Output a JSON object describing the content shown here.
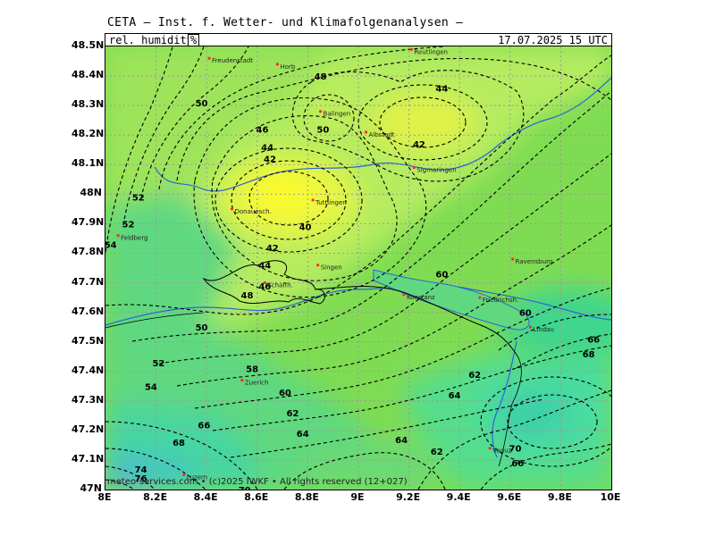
{
  "header": {
    "title": "CETA — Inst. f. Wetter- und Klimafolgenanalysen —",
    "parameter": "rel. humidity",
    "unit": "%",
    "valid_time": "17.07.2025 15 UTC"
  },
  "footer": "meteo-services.com • (c)2025 IWKF • All rights reserved (12+027)",
  "axes": {
    "x_ticks": [
      "8E",
      "8.2E",
      "8.4E",
      "8.6E",
      "8.8E",
      "9E",
      "9.2E",
      "9.4E",
      "9.6E",
      "9.8E",
      "10E"
    ],
    "y_ticks": [
      "48.5N",
      "48.4N",
      "48.3N",
      "48.2N",
      "48.1N",
      "48N",
      "47.9N",
      "47.8N",
      "47.7N",
      "47.6N",
      "47.5N",
      "47.4N",
      "47.3N",
      "47.2N",
      "47.1N",
      "47N"
    ]
  },
  "colors": {
    "grid": "#9a9a9a",
    "contour": "#000000",
    "lake": "#1f5fd0",
    "city": "#ff2a2a"
  },
  "cities": [
    {
      "name": "Freudenstadt",
      "lon": 8.41,
      "lat": 48.46
    },
    {
      "name": "Horb",
      "lon": 8.68,
      "lat": 48.44
    },
    {
      "name": "Reutlingen",
      "lon": 9.21,
      "lat": 48.49
    },
    {
      "name": "Balingen",
      "lon": 8.85,
      "lat": 48.28
    },
    {
      "name": "Albstadt",
      "lon": 9.03,
      "lat": 48.21
    },
    {
      "name": "Sigmaringen",
      "lon": 9.22,
      "lat": 48.09
    },
    {
      "name": "Tuttlingen",
      "lon": 8.82,
      "lat": 47.98
    },
    {
      "name": "Donauesch.",
      "lon": 8.5,
      "lat": 47.95
    },
    {
      "name": "Feldberg",
      "lon": 8.05,
      "lat": 47.86
    },
    {
      "name": "Singen",
      "lon": 8.84,
      "lat": 47.76
    },
    {
      "name": "Schaffh.",
      "lon": 8.63,
      "lat": 47.7
    },
    {
      "name": "Konstanz",
      "lon": 9.18,
      "lat": 47.66
    },
    {
      "name": "Ravensburg",
      "lon": 9.61,
      "lat": 47.78
    },
    {
      "name": "Friedrichsh.",
      "lon": 9.48,
      "lat": 47.65
    },
    {
      "name": "Lindau",
      "lon": 9.68,
      "lat": 47.55
    },
    {
      "name": "Zuerich",
      "lon": 8.54,
      "lat": 47.37
    },
    {
      "name": "Luzern",
      "lon": 8.31,
      "lat": 47.05
    },
    {
      "name": "Vaduz",
      "lon": 9.52,
      "lat": 47.14
    }
  ],
  "contour_labels": [
    {
      "t": "48",
      "lon": 8.85,
      "lat": 48.4
    },
    {
      "t": "44",
      "lon": 9.33,
      "lat": 48.36
    },
    {
      "t": "50",
      "lon": 8.38,
      "lat": 48.31
    },
    {
      "t": "50",
      "lon": 8.86,
      "lat": 48.22
    },
    {
      "t": "46",
      "lon": 8.62,
      "lat": 48.22
    },
    {
      "t": "44",
      "lon": 8.64,
      "lat": 48.16
    },
    {
      "t": "42",
      "lon": 9.24,
      "lat": 48.17
    },
    {
      "t": "42",
      "lon": 8.65,
      "lat": 48.12
    },
    {
      "t": "52",
      "lon": 8.13,
      "lat": 47.99
    },
    {
      "t": "52",
      "lon": 8.09,
      "lat": 47.9
    },
    {
      "t": "40",
      "lon": 8.79,
      "lat": 47.89
    },
    {
      "t": "54",
      "lon": 8.02,
      "lat": 47.83
    },
    {
      "t": "42",
      "lon": 8.66,
      "lat": 47.82
    },
    {
      "t": "44",
      "lon": 8.63,
      "lat": 47.76
    },
    {
      "t": "46",
      "lon": 8.63,
      "lat": 47.69
    },
    {
      "t": "48",
      "lon": 8.56,
      "lat": 47.66
    },
    {
      "t": "50",
      "lon": 8.38,
      "lat": 47.55
    },
    {
      "t": "60",
      "lon": 9.33,
      "lat": 47.73
    },
    {
      "t": "60",
      "lon": 9.66,
      "lat": 47.6
    },
    {
      "t": "52",
      "lon": 8.21,
      "lat": 47.43
    },
    {
      "t": "58",
      "lon": 8.58,
      "lat": 47.41
    },
    {
      "t": "54",
      "lon": 8.18,
      "lat": 47.35
    },
    {
      "t": "60",
      "lon": 8.71,
      "lat": 47.33
    },
    {
      "t": "62",
      "lon": 9.46,
      "lat": 47.39
    },
    {
      "t": "66",
      "lon": 9.93,
      "lat": 47.51
    },
    {
      "t": "68",
      "lon": 9.91,
      "lat": 47.46
    },
    {
      "t": "64",
      "lon": 9.38,
      "lat": 47.32
    },
    {
      "t": "62",
      "lon": 8.74,
      "lat": 47.26
    },
    {
      "t": "66",
      "lon": 8.39,
      "lat": 47.22
    },
    {
      "t": "64",
      "lon": 8.78,
      "lat": 47.19
    },
    {
      "t": "64",
      "lon": 9.17,
      "lat": 47.17
    },
    {
      "t": "68",
      "lon": 8.29,
      "lat": 47.16
    },
    {
      "t": "62",
      "lon": 9.31,
      "lat": 47.13
    },
    {
      "t": "70",
      "lon": 9.62,
      "lat": 47.14
    },
    {
      "t": "66",
      "lon": 9.63,
      "lat": 47.09
    },
    {
      "t": "74",
      "lon": 8.14,
      "lat": 47.07
    },
    {
      "t": "76",
      "lon": 8.14,
      "lat": 47.04
    },
    {
      "t": "70",
      "lon": 8.55,
      "lat": 47.0
    }
  ]
}
